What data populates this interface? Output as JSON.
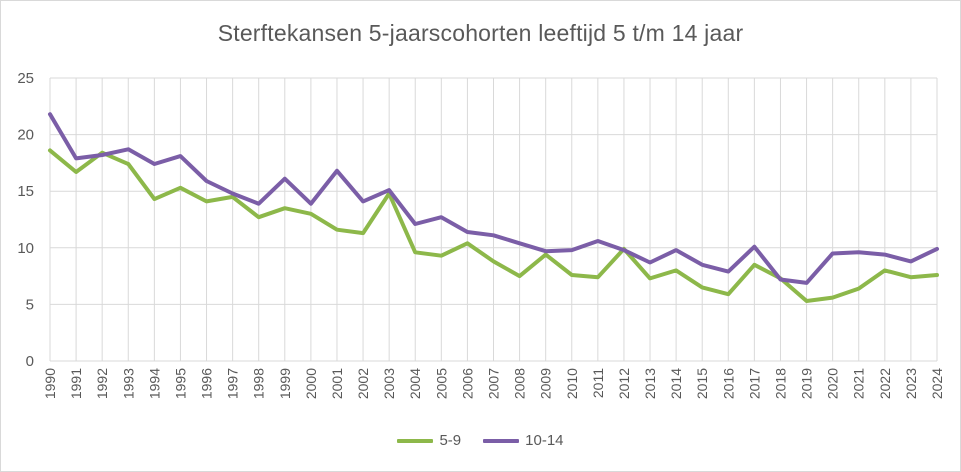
{
  "chart_data": {
    "type": "line",
    "title": "Sterftekansen 5-jaarscohorten leeftijd 5 t/m 14 jaar",
    "xlabel": "",
    "ylabel": "",
    "ylim": [
      0,
      25
    ],
    "yticks": [
      0,
      5,
      10,
      15,
      20,
      25
    ],
    "grid": true,
    "legend": "bottom",
    "categories": [
      "1990",
      "1991",
      "1992",
      "1993",
      "1994",
      "1995",
      "1996",
      "1997",
      "1998",
      "1999",
      "2000",
      "2001",
      "2002",
      "2003",
      "2004",
      "2005",
      "2006",
      "2007",
      "2008",
      "2009",
      "2010",
      "2011",
      "2012",
      "2013",
      "2014",
      "2015",
      "2016",
      "2017",
      "2018",
      "2019",
      "2020",
      "2021",
      "2022",
      "2023",
      "2024"
    ],
    "series": [
      {
        "name": "5-9",
        "color": "#8db84a",
        "values": [
          18.6,
          16.7,
          18.4,
          17.4,
          14.3,
          15.3,
          14.1,
          14.5,
          12.7,
          13.5,
          13.0,
          11.6,
          11.3,
          14.8,
          9.6,
          9.3,
          10.4,
          8.8,
          7.5,
          9.4,
          7.6,
          7.4,
          9.9,
          7.3,
          8.0,
          6.5,
          5.9,
          8.5,
          7.3,
          5.3,
          5.6,
          6.4,
          8.0,
          7.4,
          7.6
        ]
      },
      {
        "name": "10-14",
        "color": "#7b5ea7",
        "values": [
          21.8,
          17.9,
          18.2,
          18.7,
          17.4,
          18.1,
          15.9,
          14.8,
          13.9,
          16.1,
          13.9,
          16.8,
          14.1,
          15.1,
          12.1,
          12.7,
          11.4,
          11.1,
          10.4,
          9.7,
          9.8,
          10.6,
          9.8,
          8.7,
          9.8,
          8.5,
          7.9,
          10.1,
          7.2,
          6.9,
          9.5,
          9.6,
          9.4,
          8.8,
          9.9
        ]
      }
    ]
  }
}
